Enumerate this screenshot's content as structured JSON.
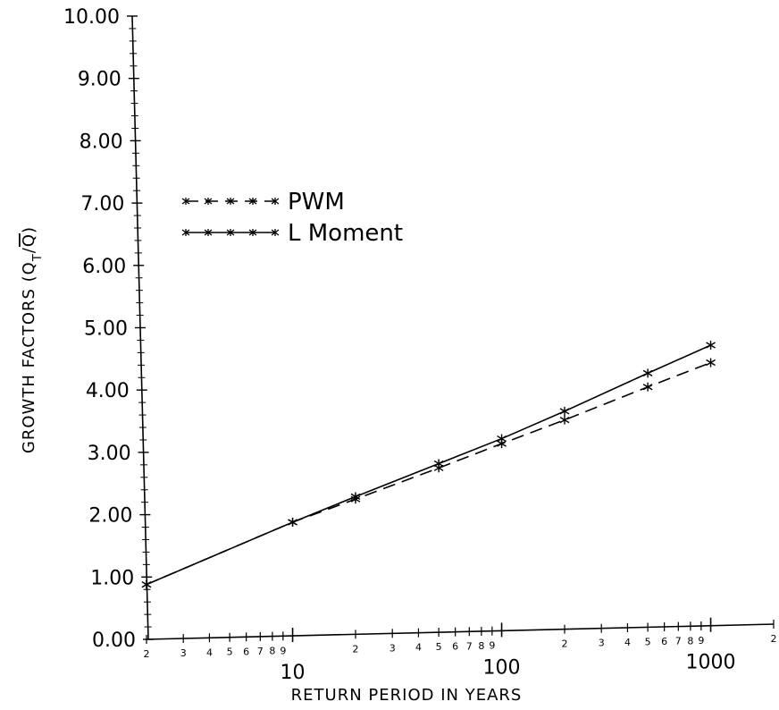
{
  "chart_data": {
    "type": "line",
    "xscale": "log",
    "xlim": [
      2,
      2000
    ],
    "ylim": [
      0,
      10
    ],
    "xlabel": "RETURN PERIOD IN YEARS",
    "ylabel_parts": {
      "main": "GROWTH FACTORS (Q",
      "sub": "T",
      "mid": "/",
      "qbar": "Q",
      "close": ")"
    },
    "y_ticks": [
      "0.00",
      "1.00",
      "2.00",
      "3.00",
      "4.00",
      "5.00",
      "6.00",
      "7.00",
      "8.00",
      "9.00",
      "10.00"
    ],
    "x_major_ticks": [
      {
        "value": 10,
        "label": "10"
      },
      {
        "value": 100,
        "label": "100"
      },
      {
        "value": 1000,
        "label": "1000"
      }
    ],
    "x_minor_ticks": [
      {
        "value": 2,
        "label": "2"
      },
      {
        "value": 3,
        "label": "3"
      },
      {
        "value": 4,
        "label": "4"
      },
      {
        "value": 5,
        "label": "5"
      },
      {
        "value": 6,
        "label": "6"
      },
      {
        "value": 7,
        "label": "7"
      },
      {
        "value": 8,
        "label": "8"
      },
      {
        "value": 9,
        "label": "9"
      },
      {
        "value": 20,
        "label": "2"
      },
      {
        "value": 30,
        "label": "3"
      },
      {
        "value": 40,
        "label": "4"
      },
      {
        "value": 50,
        "label": "5"
      },
      {
        "value": 60,
        "label": "6"
      },
      {
        "value": 70,
        "label": "7"
      },
      {
        "value": 80,
        "label": "8"
      },
      {
        "value": 90,
        "label": "9"
      },
      {
        "value": 200,
        "label": "2"
      },
      {
        "value": 300,
        "label": "3"
      },
      {
        "value": 400,
        "label": "4"
      },
      {
        "value": 500,
        "label": "5"
      },
      {
        "value": 600,
        "label": "6"
      },
      {
        "value": 700,
        "label": "7"
      },
      {
        "value": 800,
        "label": "8"
      },
      {
        "value": 900,
        "label": "9"
      },
      {
        "value": 2000,
        "label": "2"
      }
    ],
    "legend_position": "upper-left",
    "series": [
      {
        "name": "PWM",
        "style": "dashed",
        "x": [
          2,
          10,
          20,
          50,
          100,
          200,
          500,
          1000
        ],
        "y": [
          0.88,
          1.88,
          2.25,
          2.75,
          3.14,
          3.52,
          4.05,
          4.44
        ]
      },
      {
        "name": "L Moment",
        "style": "solid",
        "x": [
          2,
          10,
          20,
          50,
          100,
          200,
          500,
          1000
        ],
        "y": [
          0.88,
          1.88,
          2.29,
          2.82,
          3.22,
          3.66,
          4.27,
          4.72
        ]
      }
    ]
  }
}
